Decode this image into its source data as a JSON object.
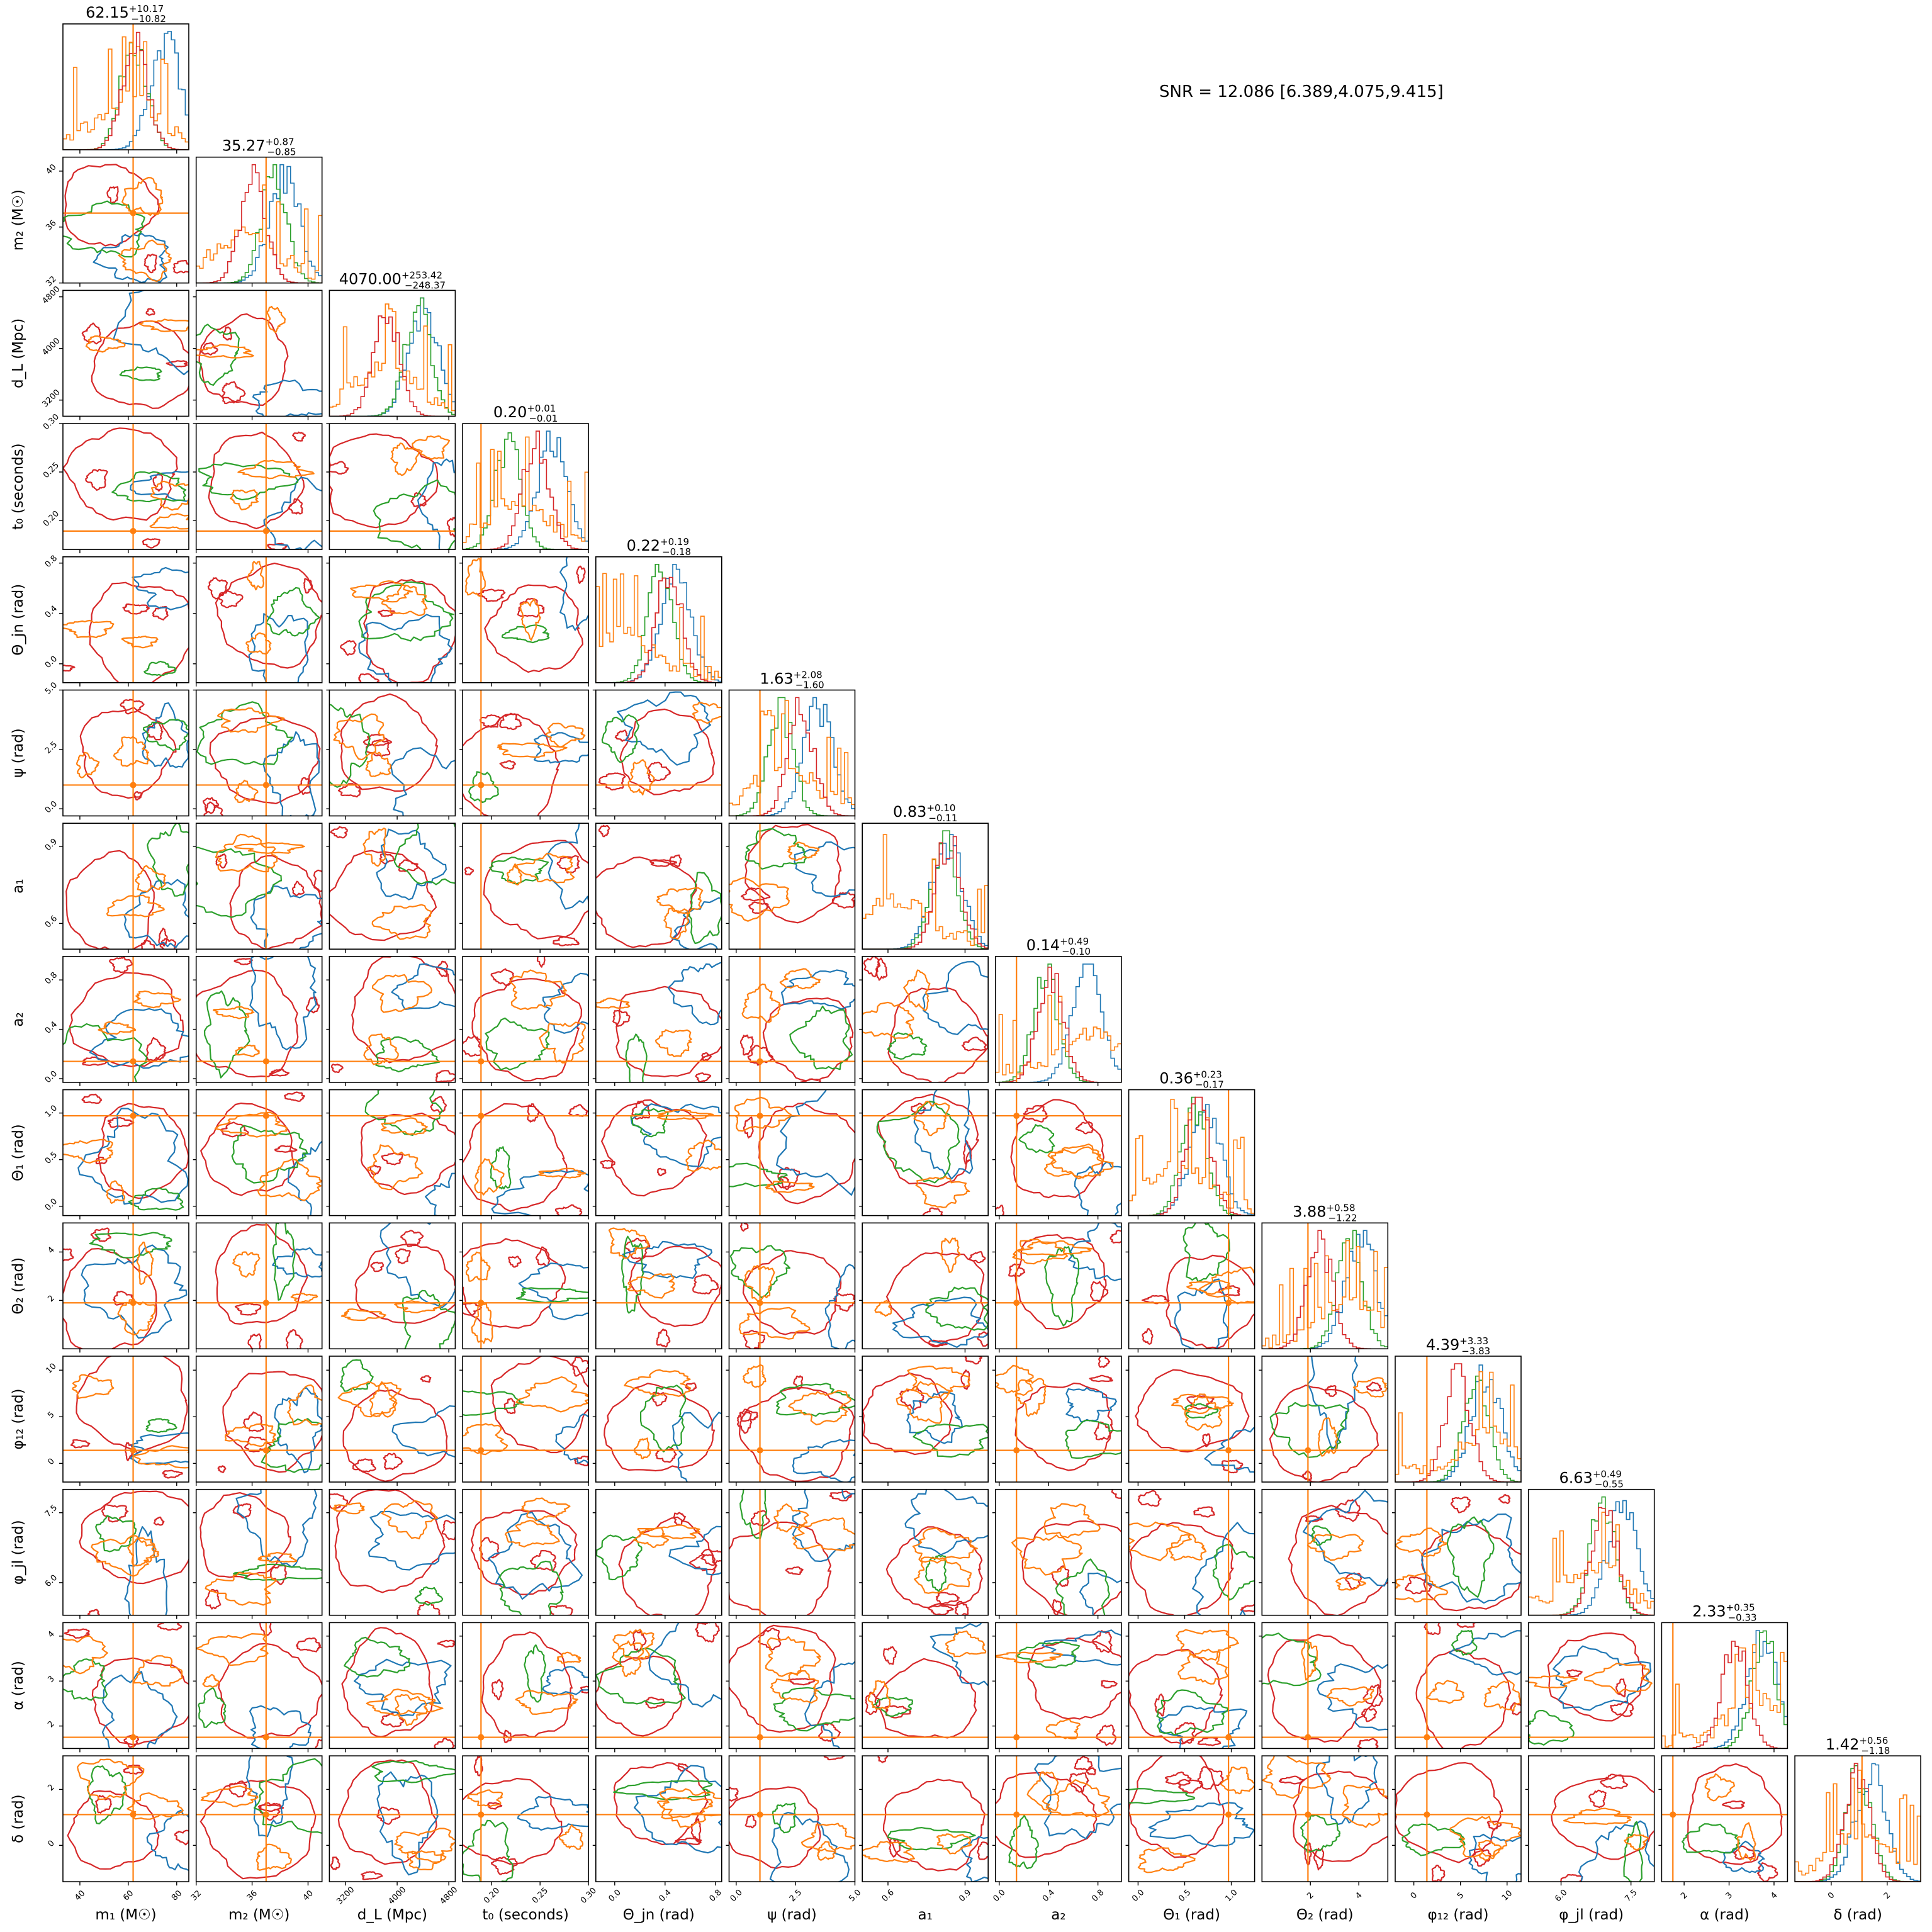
{
  "chart_data": {
    "type": "corner",
    "annotation": "SNR = 12.086 [6.389,4.075,9.415]",
    "colors": {
      "blue": "#1f77b4",
      "orange": "#ff7f0e",
      "green": "#2ca02c",
      "red": "#d62728",
      "truth": "#ff7f0e"
    },
    "params": [
      {
        "key": "m1",
        "label": "m₁ (M☉)",
        "range": [
          33,
          85
        ],
        "ticks": [
          40,
          60,
          80
        ],
        "tick_labels": [
          "40",
          "60",
          "80"
        ],
        "truth": 62,
        "center": 60,
        "spread": 12,
        "summary": {
          "median": "62.15",
          "plus": "+10.17",
          "minus": "−10.82"
        }
      },
      {
        "key": "m2",
        "label": "m₂ (M☉)",
        "range": [
          32,
          41
        ],
        "ticks": [
          32,
          36,
          40
        ],
        "tick_labels": [
          "32",
          "36",
          "40"
        ],
        "truth": 37,
        "center": 35.3,
        "spread": 0.9,
        "summary": {
          "median": "35.27",
          "plus": "+0.87",
          "minus": "−0.85"
        }
      },
      {
        "key": "dL",
        "label": "d_L (Mpc)",
        "range": [
          2950,
          4900
        ],
        "ticks": [
          3200,
          4000,
          4800
        ],
        "tick_labels": [
          "3200",
          "4000",
          "4800"
        ],
        "truth": null,
        "center": 4070,
        "spread": 250,
        "summary": {
          "median": "4070.00",
          "plus": "+253.42",
          "minus": "−248.37"
        }
      },
      {
        "key": "t0",
        "label": "t₀ (seconds)",
        "range": [
          0.17,
          0.3
        ],
        "ticks": [
          0.2,
          0.25,
          0.3
        ],
        "tick_labels": [
          "0.20",
          "0.25",
          "0.30"
        ],
        "truth": 0.189,
        "center": 0.2,
        "spread": 0.01,
        "summary": {
          "median": "0.20",
          "plus": "+0.01",
          "minus": "−0.01"
        }
      },
      {
        "key": "thetajn",
        "label": "Θ_jn (rad)",
        "range": [
          -0.15,
          0.85
        ],
        "ticks": [
          0.0,
          0.4,
          0.8
        ],
        "tick_labels": [
          "0.0",
          "0.4",
          "0.8"
        ],
        "truth": null,
        "center": 0.22,
        "spread": 0.18,
        "summary": {
          "median": "0.22",
          "plus": "+0.19",
          "minus": "−0.18"
        }
      },
      {
        "key": "psi",
        "label": "ψ (rad)",
        "range": [
          -0.3,
          5.0
        ],
        "ticks": [
          0.0,
          2.5,
          5.0
        ],
        "tick_labels": [
          "0.0",
          "2.5",
          "5.0"
        ],
        "truth": 1.0,
        "center": 1.63,
        "spread": 1.8,
        "summary": {
          "median": "1.63",
          "plus": "+2.08",
          "minus": "−1.60"
        }
      },
      {
        "key": "a1",
        "label": "a₁",
        "range": [
          0.5,
          0.99
        ],
        "ticks": [
          0.6,
          0.9
        ],
        "tick_labels": [
          "0.6",
          "0.9"
        ],
        "truth": null,
        "center": 0.83,
        "spread": 0.1,
        "summary": {
          "median": "0.83",
          "plus": "+0.10",
          "minus": "−0.11"
        }
      },
      {
        "key": "a2",
        "label": "a₂",
        "range": [
          -0.03,
          0.99
        ],
        "ticks": [
          0.0,
          0.4,
          0.8
        ],
        "tick_labels": [
          "0.0",
          "0.4",
          "0.8"
        ],
        "truth": 0.14,
        "center": 0.14,
        "spread": 0.25,
        "summary": {
          "median": "0.14",
          "plus": "+0.49",
          "minus": "−0.10"
        }
      },
      {
        "key": "theta1",
        "label": "Θ₁ (rad)",
        "range": [
          -0.1,
          1.25
        ],
        "ticks": [
          0.0,
          0.5,
          1.0
        ],
        "tick_labels": [
          "0.0",
          "0.5",
          "1.0"
        ],
        "truth": 0.97,
        "center": 0.36,
        "spread": 0.2,
        "summary": {
          "median": "0.36",
          "plus": "+0.23",
          "minus": "−0.17"
        }
      },
      {
        "key": "theta2",
        "label": "Θ₂ (rad)",
        "range": [
          0.0,
          5.2
        ],
        "ticks": [
          2,
          4
        ],
        "tick_labels": [
          "2",
          "4"
        ],
        "truth": 1.9,
        "center": 3.88,
        "spread": 0.9,
        "summary": {
          "median": "3.88",
          "plus": "+0.58",
          "minus": "−1.22"
        }
      },
      {
        "key": "phi12",
        "label": "φ₁₂ (rad)",
        "range": [
          -2.0,
          11.5
        ],
        "ticks": [
          0,
          5,
          10
        ],
        "tick_labels": [
          "0",
          "5",
          "10"
        ],
        "truth": 1.4,
        "center": 4.39,
        "spread": 3.5,
        "summary": {
          "median": "4.39",
          "plus": "+3.33",
          "minus": "−3.83"
        }
      },
      {
        "key": "phijl",
        "label": "φ_jl (rad)",
        "range": [
          5.3,
          8.0
        ],
        "ticks": [
          6.0,
          7.5
        ],
        "tick_labels": [
          "6.0",
          "7.5"
        ],
        "truth": null,
        "center": 6.63,
        "spread": 0.5,
        "summary": {
          "median": "6.63",
          "plus": "+0.49",
          "minus": "−0.55"
        }
      },
      {
        "key": "alpha",
        "label": "α (rad)",
        "range": [
          1.5,
          4.3
        ],
        "ticks": [
          2,
          3,
          4
        ],
        "tick_labels": [
          "2",
          "3",
          "4"
        ],
        "truth": 1.75,
        "center": 2.33,
        "spread": 0.34,
        "summary": {
          "median": "2.33",
          "plus": "+0.35",
          "minus": "−0.33"
        }
      },
      {
        "key": "delta",
        "label": "δ (rad)",
        "range": [
          -1.3,
          3.2
        ],
        "ticks": [
          0,
          2
        ],
        "tick_labels": [
          "0",
          "2"
        ],
        "truth": 1.1,
        "center": 1.42,
        "spread": 0.9,
        "summary": {
          "median": "1.42",
          "plus": "+0.56",
          "minus": "−1.18"
        }
      }
    ]
  }
}
